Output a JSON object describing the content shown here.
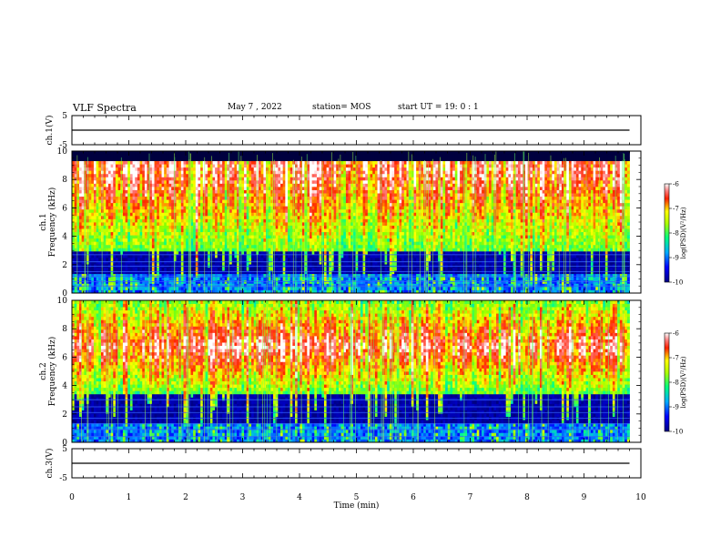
{
  "header": {
    "title": "VLF Spectra",
    "date": "May 7 , 2022",
    "station": "station= MOS",
    "start": "start  UT =  19: 0  : 1"
  },
  "chart_data": [
    {
      "type": "line",
      "panel": "ch1-waveform",
      "ylabel": "ch.1(V)",
      "ylim": [
        -5,
        5
      ],
      "yticks": [
        "5",
        "-5"
      ],
      "xlim": [
        0,
        10
      ],
      "series": [
        {
          "x": [
            0,
            9.8
          ],
          "values": [
            0,
            0
          ]
        }
      ],
      "line_color": "#000000"
    },
    {
      "type": "heatmap",
      "panel": "ch1-spectrogram",
      "ylabel": "ch.1\nFrequency (kHz)",
      "ylim": [
        0,
        10
      ],
      "yticks": [
        "0",
        "2",
        "4",
        "6",
        "8",
        "10"
      ],
      "xlim": [
        0,
        10
      ],
      "data_extent_x": [
        0,
        9.8
      ],
      "colorbar": {
        "label": "log(PSD)(V²/Hz)",
        "range": [
          -10,
          -6
        ],
        "ticks": [
          "-6",
          "-7",
          "-8",
          "-9",
          "-10"
        ]
      },
      "band_kHz": [
        3,
        9.4
      ],
      "peak_kHz": 8.8,
      "lines_kHz": [
        0.5,
        0.8,
        1.2,
        1.5,
        1.9,
        2.2,
        2.7
      ]
    },
    {
      "type": "heatmap",
      "panel": "ch2-spectrogram",
      "ylabel": "ch.2\nFrequency (kHz)",
      "ylim": [
        0,
        10
      ],
      "yticks": [
        "0",
        "2",
        "4",
        "6",
        "8",
        "10"
      ],
      "xlim": [
        0,
        10
      ],
      "data_extent_x": [
        0,
        9.8
      ],
      "colorbar": {
        "label": "log(PSD)(V²/Hz)",
        "range": [
          -10,
          -6
        ],
        "ticks": [
          "-6",
          "-7",
          "-8",
          "-9",
          "-10"
        ]
      },
      "band_kHz": [
        3.5,
        10
      ],
      "peak_kHz": 6.8,
      "lines_kHz": [
        0.4,
        0.9,
        1.3,
        1.7,
        2.1,
        2.5,
        3.0
      ]
    },
    {
      "type": "line",
      "panel": "ch3-waveform",
      "ylabel": "ch.3(V)",
      "ylim": [
        -5,
        5
      ],
      "yticks": [
        "5",
        "-5"
      ],
      "xlim": [
        0,
        10
      ],
      "series": [
        {
          "x": [
            0,
            9.8
          ],
          "values": [
            0,
            0
          ]
        }
      ],
      "line_color": "#000000"
    }
  ],
  "xaxis": {
    "label": "Time  (min)",
    "ticks": [
      "0",
      "1",
      "2",
      "3",
      "4",
      "5",
      "6",
      "7",
      "8",
      "9",
      "10"
    ],
    "range": [
      0,
      10
    ]
  }
}
